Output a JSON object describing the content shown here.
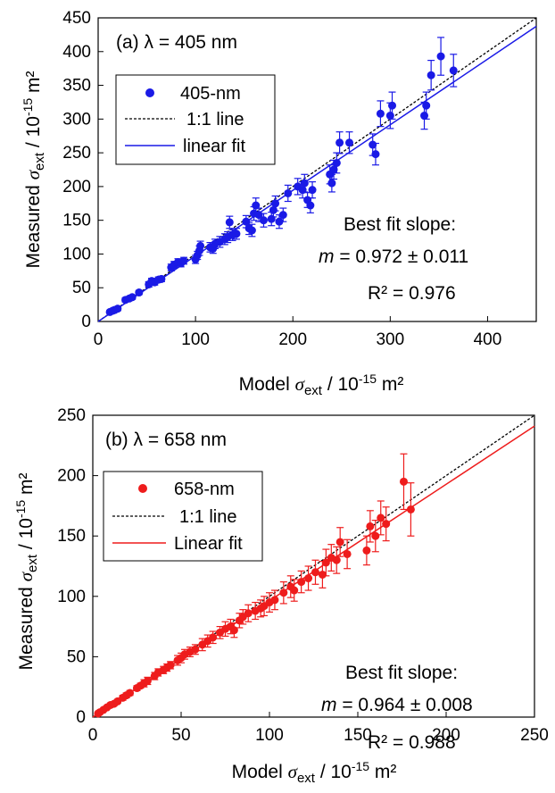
{
  "chart_data": [
    {
      "type": "scatter",
      "id": "a",
      "title": "(a) λ = 405 nm",
      "xlabel": {
        "pre": "Model ",
        "sym": "σ",
        "sub": "ext",
        "mid": " / 10",
        "sup": "-15",
        "post": " m²"
      },
      "ylabel": {
        "pre": "Measured ",
        "sym": "σ",
        "sub": "ext",
        "mid": " / 10",
        "sup": "-15",
        "post": " m²"
      },
      "xlim": [
        0,
        450
      ],
      "ylim": [
        0,
        450
      ],
      "xticks": [
        0,
        100,
        200,
        300,
        400
      ],
      "yticks": [
        0,
        50,
        100,
        150,
        200,
        250,
        300,
        350,
        400,
        450
      ],
      "grid": false,
      "legend_position": "top-left",
      "legend": [
        "405-nm",
        "1:1 line",
        "linear fit"
      ],
      "color": "#1a1ae6",
      "one_to_one": [
        [
          0,
          0
        ],
        [
          450,
          450
        ]
      ],
      "fit": {
        "slope": 0.972,
        "intercept": 0,
        "x_range": [
          0,
          450
        ]
      },
      "annotations": {
        "slope_title": "Best fit slope:",
        "slope_sym": "m",
        "slope_text": " = 0.972 ± 0.011",
        "r2": "R² = 0.976"
      },
      "series": [
        {
          "name": "405-nm",
          "points": [
            [
              12,
              14,
              2
            ],
            [
              15,
              16,
              2
            ],
            [
              17,
              17,
              2
            ],
            [
              20,
              19,
              3
            ],
            [
              28,
              32,
              3
            ],
            [
              32,
              34,
              3
            ],
            [
              35,
              36,
              3
            ],
            [
              42,
              43,
              3
            ],
            [
              52,
              55,
              4
            ],
            [
              55,
              60,
              4
            ],
            [
              58,
              58,
              4
            ],
            [
              62,
              62,
              4
            ],
            [
              65,
              63,
              4
            ],
            [
              75,
              80,
              5
            ],
            [
              78,
              84,
              5
            ],
            [
              82,
              88,
              5
            ],
            [
              85,
              86,
              5
            ],
            [
              88,
              90,
              5
            ],
            [
              100,
              92,
              6
            ],
            [
              102,
              98,
              6
            ],
            [
              104,
              105,
              7
            ],
            [
              105,
              112,
              7
            ],
            [
              115,
              110,
              7
            ],
            [
              118,
              108,
              7
            ],
            [
              120,
              115,
              7
            ],
            [
              125,
              118,
              8
            ],
            [
              130,
              122,
              8
            ],
            [
              133,
              125,
              8
            ],
            [
              135,
              147,
              9
            ],
            [
              138,
              128,
              8
            ],
            [
              142,
              130,
              8
            ],
            [
              152,
              148,
              9
            ],
            [
              155,
              138,
              9
            ],
            [
              158,
              135,
              9
            ],
            [
              160,
              160,
              10
            ],
            [
              162,
              172,
              11
            ],
            [
              165,
              158,
              10
            ],
            [
              170,
              150,
              10
            ],
            [
              178,
              152,
              10
            ],
            [
              180,
              165,
              10
            ],
            [
              182,
              175,
              11
            ],
            [
              186,
              148,
              10
            ],
            [
              190,
              158,
              10
            ],
            [
              195,
              190,
              12
            ],
            [
              205,
              200,
              12
            ],
            [
              210,
              195,
              12
            ],
            [
              212,
              205,
              13
            ],
            [
              215,
              180,
              11
            ],
            [
              218,
              172,
              11
            ],
            [
              220,
              195,
              12
            ],
            [
              238,
              218,
              14
            ],
            [
              240,
              205,
              13
            ],
            [
              242,
              225,
              14
            ],
            [
              245,
              235,
              15
            ],
            [
              248,
              265,
              16
            ],
            [
              258,
              265,
              16
            ],
            [
              282,
              262,
              16
            ],
            [
              285,
              248,
              16
            ],
            [
              290,
              308,
              19
            ],
            [
              300,
              305,
              19
            ],
            [
              302,
              320,
              20
            ],
            [
              335,
              305,
              20
            ],
            [
              337,
              320,
              20
            ],
            [
              342,
              365,
              22
            ],
            [
              352,
              393,
              28
            ],
            [
              365,
              372,
              24
            ]
          ]
        }
      ]
    },
    {
      "type": "scatter",
      "id": "b",
      "title": "(b) λ = 658 nm",
      "xlabel": {
        "pre": "Model ",
        "sym": "σ",
        "sub": "ext",
        "mid": " / 10",
        "sup": "-15",
        "post": " m²"
      },
      "ylabel": {
        "pre": "Measured ",
        "sym": "σ",
        "sub": "ext",
        "mid": " / 10",
        "sup": "-15",
        "post": " m²"
      },
      "xlim": [
        0,
        250
      ],
      "ylim": [
        0,
        250
      ],
      "xticks": [
        0,
        50,
        100,
        150,
        200,
        250
      ],
      "yticks": [
        0,
        50,
        100,
        150,
        200,
        250
      ],
      "grid": false,
      "legend_position": "top-left",
      "legend": [
        "658-nm",
        "1:1 line",
        "Linear fit"
      ],
      "color": "#ee1c1c",
      "one_to_one": [
        [
          0,
          0
        ],
        [
          250,
          250
        ]
      ],
      "fit": {
        "slope": 0.964,
        "intercept": 0,
        "x_range": [
          0,
          250
        ]
      },
      "annotations": {
        "slope_title": "Best fit slope:",
        "slope_sym": "m",
        "slope_text": " = 0.964 ± 0.008",
        "r2": "R² = 0.988"
      },
      "series": [
        {
          "name": "658-nm",
          "points": [
            [
              3,
              3,
              1
            ],
            [
              4,
              4,
              1
            ],
            [
              6,
              6,
              1
            ],
            [
              8,
              8,
              1
            ],
            [
              10,
              10,
              1.5
            ],
            [
              12,
              11,
              1.5
            ],
            [
              14,
              13,
              1.5
            ],
            [
              17,
              16,
              2
            ],
            [
              19,
              18,
              2
            ],
            [
              21,
              20,
              2
            ],
            [
              25,
              24,
              2
            ],
            [
              27,
              26,
              2
            ],
            [
              29,
              28,
              3
            ],
            [
              31,
              30,
              3
            ],
            [
              35,
              34,
              3
            ],
            [
              37,
              37,
              3
            ],
            [
              40,
              39,
              3
            ],
            [
              42,
              41,
              3
            ],
            [
              44,
              43,
              3
            ],
            [
              48,
              47,
              4
            ],
            [
              50,
              49,
              4
            ],
            [
              52,
              52,
              4
            ],
            [
              55,
              54,
              4
            ],
            [
              58,
              56,
              4
            ],
            [
              62,
              60,
              5
            ],
            [
              65,
              63,
              5
            ],
            [
              68,
              66,
              5
            ],
            [
              72,
              70,
              5
            ],
            [
              75,
              73,
              6
            ],
            [
              78,
              75,
              6
            ],
            [
              80,
              72,
              6
            ],
            [
              83,
              80,
              6
            ],
            [
              85,
              83,
              6
            ],
            [
              88,
              86,
              7
            ],
            [
              92,
              88,
              7
            ],
            [
              95,
              90,
              7
            ],
            [
              97,
              92,
              8
            ],
            [
              100,
              95,
              8
            ],
            [
              103,
              97,
              8
            ],
            [
              108,
              103,
              9
            ],
            [
              112,
              108,
              9
            ],
            [
              114,
              105,
              9
            ],
            [
              118,
              112,
              9
            ],
            [
              122,
              115,
              10
            ],
            [
              126,
              120,
              10
            ],
            [
              130,
              118,
              11
            ],
            [
              132,
              128,
              11
            ],
            [
              135,
              132,
              11
            ],
            [
              138,
              130,
              11
            ],
            [
              140,
              145,
              12
            ],
            [
              144,
              135,
              12
            ],
            [
              155,
              138,
              12
            ],
            [
              157,
              158,
              13
            ],
            [
              160,
              150,
              13
            ],
            [
              163,
              165,
              14
            ],
            [
              166,
              160,
              14
            ],
            [
              176,
              195,
              23
            ],
            [
              180,
              172,
              22
            ]
          ]
        }
      ]
    }
  ]
}
